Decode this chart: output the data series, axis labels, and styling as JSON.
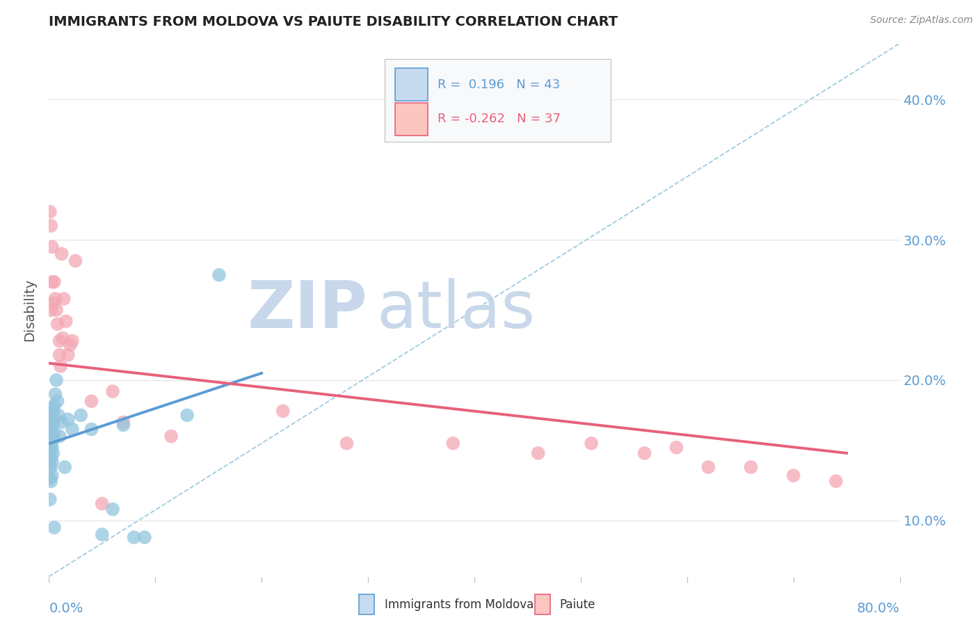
{
  "title": "IMMIGRANTS FROM MOLDOVA VS PAIUTE DISABILITY CORRELATION CHART",
  "source": "Source: ZipAtlas.com",
  "ylabel": "Disability",
  "yticks": [
    0.1,
    0.2,
    0.3,
    0.4
  ],
  "ytick_labels": [
    "10.0%",
    "20.0%",
    "30.0%",
    "40.0%"
  ],
  "xlim": [
    0.0,
    0.8
  ],
  "ylim": [
    0.06,
    0.44
  ],
  "blue_color": "#5b9bd5",
  "pink_color": "#e8607a",
  "blue_scatter_color": "#92c5de",
  "pink_scatter_color": "#f4a7b4",
  "blue_fill": "#c6dbef",
  "pink_fill": "#fcc5c0",
  "dashed_line_color": "#92c5de",
  "blue_scatter_x": [
    0.001,
    0.001,
    0.001,
    0.001,
    0.001,
    0.002,
    0.002,
    0.002,
    0.002,
    0.002,
    0.002,
    0.003,
    0.003,
    0.003,
    0.003,
    0.003,
    0.003,
    0.004,
    0.004,
    0.004,
    0.004,
    0.005,
    0.005,
    0.005,
    0.005,
    0.006,
    0.007,
    0.008,
    0.009,
    0.01,
    0.012,
    0.015,
    0.018,
    0.022,
    0.03,
    0.04,
    0.05,
    0.06,
    0.07,
    0.08,
    0.09,
    0.13,
    0.16
  ],
  "blue_scatter_y": [
    0.16,
    0.15,
    0.14,
    0.13,
    0.115,
    0.175,
    0.165,
    0.155,
    0.145,
    0.138,
    0.128,
    0.18,
    0.17,
    0.16,
    0.152,
    0.142,
    0.132,
    0.178,
    0.168,
    0.158,
    0.148,
    0.182,
    0.172,
    0.162,
    0.095,
    0.19,
    0.2,
    0.185,
    0.175,
    0.16,
    0.17,
    0.138,
    0.172,
    0.165,
    0.175,
    0.165,
    0.09,
    0.108,
    0.168,
    0.088,
    0.088,
    0.175,
    0.275
  ],
  "pink_scatter_x": [
    0.001,
    0.002,
    0.002,
    0.003,
    0.003,
    0.004,
    0.005,
    0.006,
    0.007,
    0.008,
    0.01,
    0.01,
    0.011,
    0.012,
    0.013,
    0.014,
    0.016,
    0.018,
    0.02,
    0.022,
    0.025,
    0.04,
    0.05,
    0.06,
    0.07,
    0.115,
    0.22,
    0.28,
    0.38,
    0.46,
    0.51,
    0.56,
    0.59,
    0.62,
    0.66,
    0.7,
    0.74
  ],
  "pink_scatter_y": [
    0.32,
    0.31,
    0.25,
    0.295,
    0.27,
    0.255,
    0.27,
    0.258,
    0.25,
    0.24,
    0.228,
    0.218,
    0.21,
    0.29,
    0.23,
    0.258,
    0.242,
    0.218,
    0.225,
    0.228,
    0.285,
    0.185,
    0.112,
    0.192,
    0.17,
    0.16,
    0.178,
    0.155,
    0.155,
    0.148,
    0.155,
    0.148,
    0.152,
    0.138,
    0.138,
    0.132,
    0.128
  ],
  "blue_trend_x": [
    0.001,
    0.2
  ],
  "blue_trend_y": [
    0.155,
    0.205
  ],
  "pink_trend_x": [
    0.001,
    0.75
  ],
  "pink_trend_y": [
    0.212,
    0.148
  ],
  "dashed_trend_x": [
    0.0,
    0.8
  ],
  "dashed_trend_y": [
    0.06,
    0.44
  ],
  "background_color": "#ffffff",
  "grid_color": "#e0e0e0",
  "watermark_zip_color": "#c8d8ea",
  "watermark_atlas_color": "#c8d8ea"
}
